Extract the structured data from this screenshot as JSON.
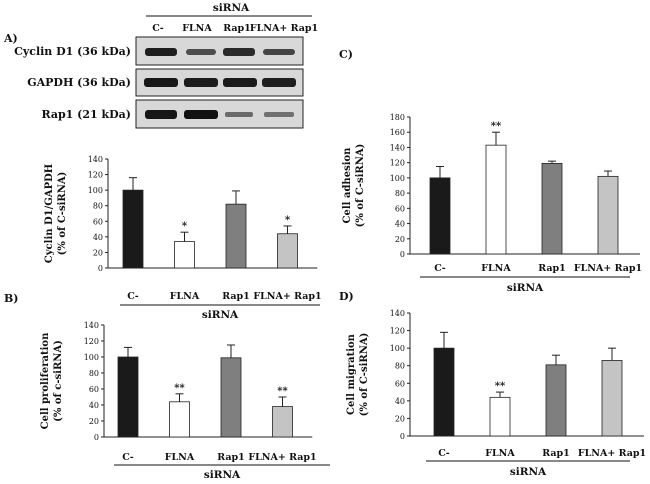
{
  "figure": {
    "panel_labels": [
      "A)",
      "B)",
      "C)",
      "D)"
    ],
    "blot": {
      "header": "siRNA",
      "lanes": [
        "C-",
        "FLNA",
        "Rap1",
        "FLNA+ Rap1"
      ],
      "rows": [
        "Cyclin D1 (36 kDa)",
        "GAPDH (36 kDa)",
        "Rap1 (21 kDa)"
      ]
    }
  },
  "chart_data": [
    {
      "panel": "A)",
      "type": "bar",
      "categories": [
        "C-",
        "FLNA",
        "Rap1",
        "FLNA+ Rap1"
      ],
      "values": [
        100,
        34,
        82,
        44
      ],
      "errors": [
        16,
        12,
        17,
        10
      ],
      "significance": [
        "",
        "*",
        "",
        "*"
      ],
      "bar_colors": [
        "#1a1a1a",
        "#ffffff",
        "#7f7f7f",
        "#c4c4c4"
      ],
      "ylabel_lines": [
        "Cyclin D1/GAPDH",
        "(% of C-siRNA)"
      ],
      "xlabel": "siRNA",
      "ylim": [
        0,
        140
      ],
      "yticks": [
        0,
        20,
        40,
        60,
        80,
        100,
        120,
        140
      ]
    },
    {
      "panel": "B)",
      "type": "bar",
      "categories": [
        "C-",
        "FLNA",
        "Rap1",
        "FLNA+ Rap1"
      ],
      "values": [
        100,
        44,
        99,
        38
      ],
      "errors": [
        12,
        10,
        16,
        12
      ],
      "significance": [
        "",
        "**",
        "",
        "**"
      ],
      "bar_colors": [
        "#1a1a1a",
        "#ffffff",
        "#7f7f7f",
        "#c4c4c4"
      ],
      "ylabel_lines": [
        "Cell proliferation",
        "(% of c-siRNA)"
      ],
      "xlabel": "siRNA",
      "ylim": [
        0,
        140
      ],
      "yticks": [
        0,
        20,
        40,
        60,
        80,
        100,
        120,
        140
      ]
    },
    {
      "panel": "C)",
      "type": "bar",
      "categories": [
        "C-",
        "FLNA",
        "Rap1",
        "FLNA+ Rap1"
      ],
      "values": [
        100,
        143,
        119,
        102
      ],
      "errors": [
        15,
        17,
        3,
        7
      ],
      "significance": [
        "",
        "**",
        "",
        ""
      ],
      "bar_colors": [
        "#1a1a1a",
        "#ffffff",
        "#7f7f7f",
        "#c4c4c4"
      ],
      "ylabel_lines": [
        "Cell adhesion",
        "(% of C-siRNA)"
      ],
      "xlabel": "siRNA",
      "ylim": [
        0,
        180
      ],
      "yticks": [
        0,
        20,
        40,
        60,
        80,
        100,
        120,
        140,
        160,
        180
      ]
    },
    {
      "panel": "D)",
      "type": "bar",
      "categories": [
        "C-",
        "FLNA",
        "Rap1",
        "FLNA+ Rap1"
      ],
      "values": [
        100,
        44,
        81,
        86
      ],
      "errors": [
        18,
        6,
        11,
        14
      ],
      "significance": [
        "",
        "**",
        "",
        ""
      ],
      "bar_colors": [
        "#1a1a1a",
        "#ffffff",
        "#7f7f7f",
        "#c4c4c4"
      ],
      "ylabel_lines": [
        "Cell migration",
        "(% of C-siRNA)"
      ],
      "xlabel": "siRNA",
      "ylim": [
        0,
        140
      ],
      "yticks": [
        0,
        20,
        40,
        60,
        80,
        100,
        120,
        140
      ]
    }
  ]
}
